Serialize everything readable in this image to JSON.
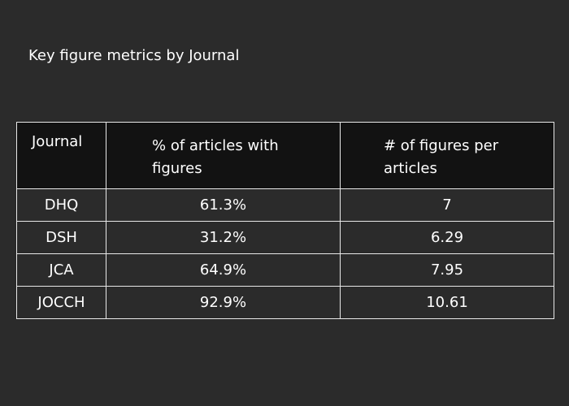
{
  "chart_data": {
    "type": "table",
    "title": "Key figure metrics by Journal",
    "columns": [
      "Journal",
      "% of articles with figures",
      "# of figures per articles"
    ],
    "rows": [
      [
        "DHQ",
        "61.3%",
        "7"
      ],
      [
        "DSH",
        "31.2%",
        "6.29"
      ],
      [
        "JCA",
        "64.9%",
        "7.95"
      ],
      [
        "JOCCH",
        "92.9%",
        "10.61"
      ]
    ]
  },
  "colors": {
    "background": "#2b2b2b",
    "header_background": "#121212",
    "border": "#e8e8e8",
    "text": "#ffffff"
  }
}
